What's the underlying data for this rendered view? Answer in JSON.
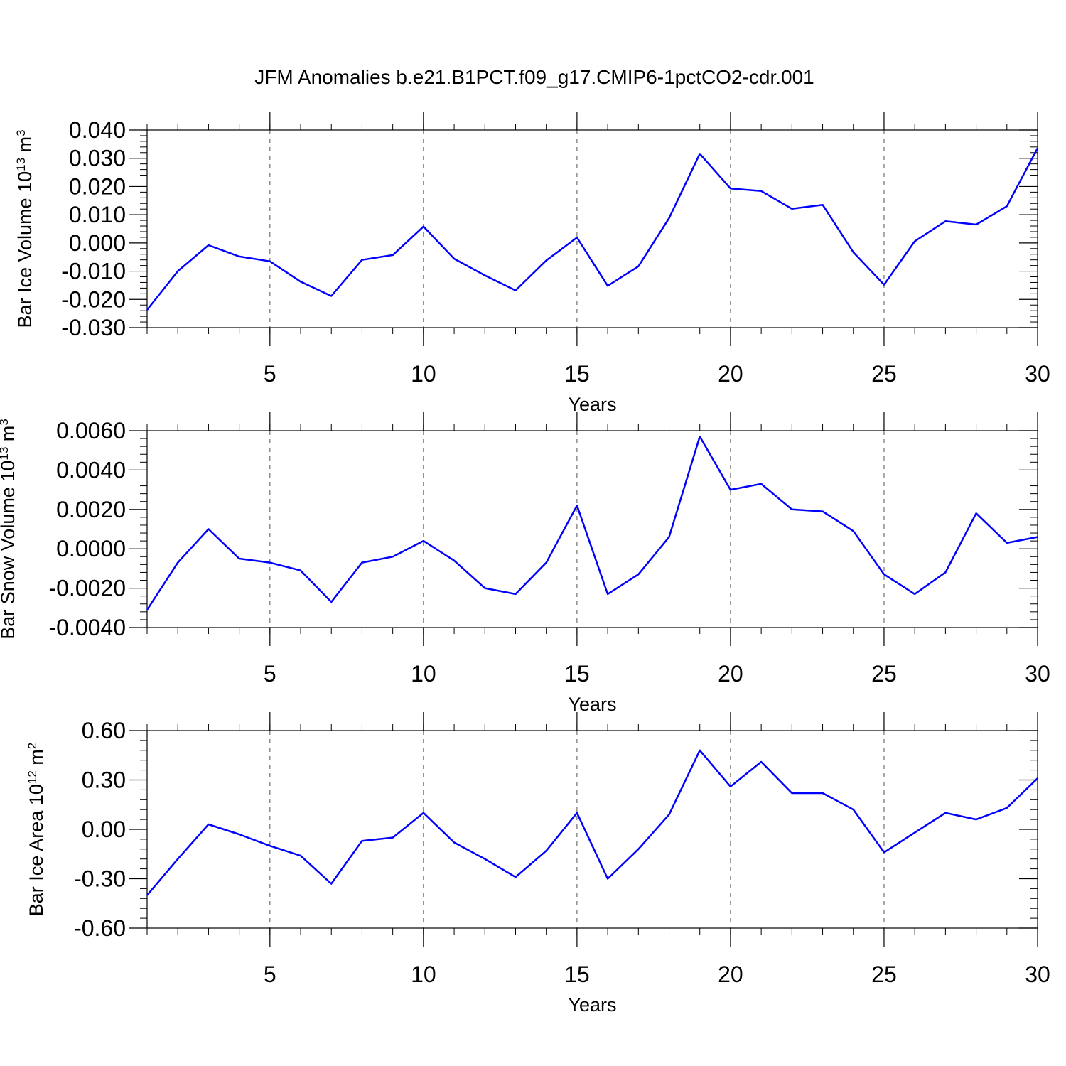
{
  "figure": {
    "title": "JFM Anomalies b.e21.B1PCT.f09_g17.CMIP6-1pctCO2-cdr.001"
  },
  "colors": {
    "series": "#0000ff",
    "axes": "#000000",
    "grid": "#555555"
  },
  "chart_data": [
    {
      "type": "line",
      "title": "",
      "xlabel": "Years",
      "ylabel": {
        "base": "Bar Ice Volume 10",
        "exponent": "13",
        "unit": " m",
        "unit_exponent": "3"
      },
      "xlim": [
        1,
        30
      ],
      "ylim": [
        -0.03,
        0.04
      ],
      "x_ticks": [
        5,
        10,
        15,
        20,
        25,
        30
      ],
      "x_tick_labels": [
        "5",
        "10",
        "15",
        "20",
        "25",
        "30"
      ],
      "y_ticks": [
        -0.03,
        -0.02,
        -0.01,
        0.0,
        0.01,
        0.02,
        0.03,
        0.04
      ],
      "y_tick_labels": [
        "-0.030",
        "-0.020",
        "-0.010",
        "0.000",
        "0.010",
        "0.020",
        "0.030",
        "0.040"
      ],
      "grid": "vertical dashed at major x ticks",
      "x": [
        1,
        2,
        3,
        4,
        5,
        6,
        7,
        8,
        9,
        10,
        11,
        12,
        13,
        14,
        15,
        16,
        17,
        18,
        19,
        20,
        21,
        22,
        23,
        24,
        25,
        26,
        27,
        28,
        29,
        30
      ],
      "y": [
        -0.0237,
        -0.01,
        -0.0008,
        -0.0048,
        -0.0065,
        -0.0137,
        -0.0188,
        -0.006,
        -0.0043,
        0.0058,
        -0.0056,
        -0.0115,
        -0.0168,
        -0.0062,
        0.0019,
        -0.0152,
        -0.0083,
        0.0088,
        0.0316,
        0.0193,
        0.0184,
        0.0121,
        0.0135,
        -0.0033,
        -0.0148,
        0.0006,
        0.0077,
        0.0065,
        0.013,
        0.0336
      ]
    },
    {
      "type": "line",
      "title": "",
      "xlabel": "Years",
      "ylabel": {
        "base": "Bar Snow Volume 10",
        "exponent": "13",
        "unit": " m",
        "unit_exponent": "3"
      },
      "xlim": [
        1,
        30
      ],
      "ylim": [
        -0.004,
        0.006
      ],
      "x_ticks": [
        5,
        10,
        15,
        20,
        25,
        30
      ],
      "x_tick_labels": [
        "5",
        "10",
        "15",
        "20",
        "25",
        "30"
      ],
      "y_ticks": [
        -0.004,
        -0.002,
        0.0,
        0.002,
        0.004,
        0.006
      ],
      "y_tick_labels": [
        "-0.0040",
        "-0.0020",
        "0.0000",
        "0.0020",
        "0.0040",
        "0.0060"
      ],
      "grid": "vertical dashed at major x ticks",
      "x": [
        1,
        2,
        3,
        4,
        5,
        6,
        7,
        8,
        9,
        10,
        11,
        12,
        13,
        14,
        15,
        16,
        17,
        18,
        19,
        20,
        21,
        22,
        23,
        24,
        25,
        26,
        27,
        28,
        29,
        30
      ],
      "y": [
        -0.0031,
        -0.0007,
        0.001,
        -0.0005,
        -0.0007,
        -0.0011,
        -0.0027,
        -0.0007,
        -0.0004,
        0.0004,
        -0.0006,
        -0.002,
        -0.0023,
        -0.0007,
        0.0022,
        -0.0023,
        -0.0013,
        0.0006,
        0.0057,
        0.003,
        0.0033,
        0.002,
        0.0019,
        0.0009,
        -0.0013,
        -0.0023,
        -0.0012,
        0.0018,
        0.0003,
        0.0006
      ]
    },
    {
      "type": "line",
      "title": "",
      "xlabel": "Years",
      "ylabel": {
        "base": "Bar Ice Area 10",
        "exponent": "12",
        "unit": " m",
        "unit_exponent": "2"
      },
      "xlim": [
        1,
        30
      ],
      "ylim": [
        -0.6,
        0.6
      ],
      "x_ticks": [
        5,
        10,
        15,
        20,
        25,
        30
      ],
      "x_tick_labels": [
        "5",
        "10",
        "15",
        "20",
        "25",
        "30"
      ],
      "y_ticks": [
        -0.6,
        -0.3,
        0.0,
        0.3,
        0.6
      ],
      "y_tick_labels": [
        "-0.60",
        "-0.30",
        "0.00",
        "0.30",
        "0.60"
      ],
      "grid": "vertical dashed at major x ticks",
      "x": [
        1,
        2,
        3,
        4,
        5,
        6,
        7,
        8,
        9,
        10,
        11,
        12,
        13,
        14,
        15,
        16,
        17,
        18,
        19,
        20,
        21,
        22,
        23,
        24,
        25,
        26,
        27,
        28,
        29,
        30
      ],
      "y": [
        -0.4,
        -0.18,
        0.03,
        -0.03,
        -0.1,
        -0.16,
        -0.33,
        -0.07,
        -0.05,
        0.1,
        -0.08,
        -0.18,
        -0.29,
        -0.13,
        0.1,
        -0.3,
        -0.12,
        0.09,
        0.48,
        0.26,
        0.41,
        0.22,
        0.22,
        0.12,
        -0.14,
        -0.02,
        0.1,
        0.06,
        0.13,
        0.31
      ]
    }
  ]
}
